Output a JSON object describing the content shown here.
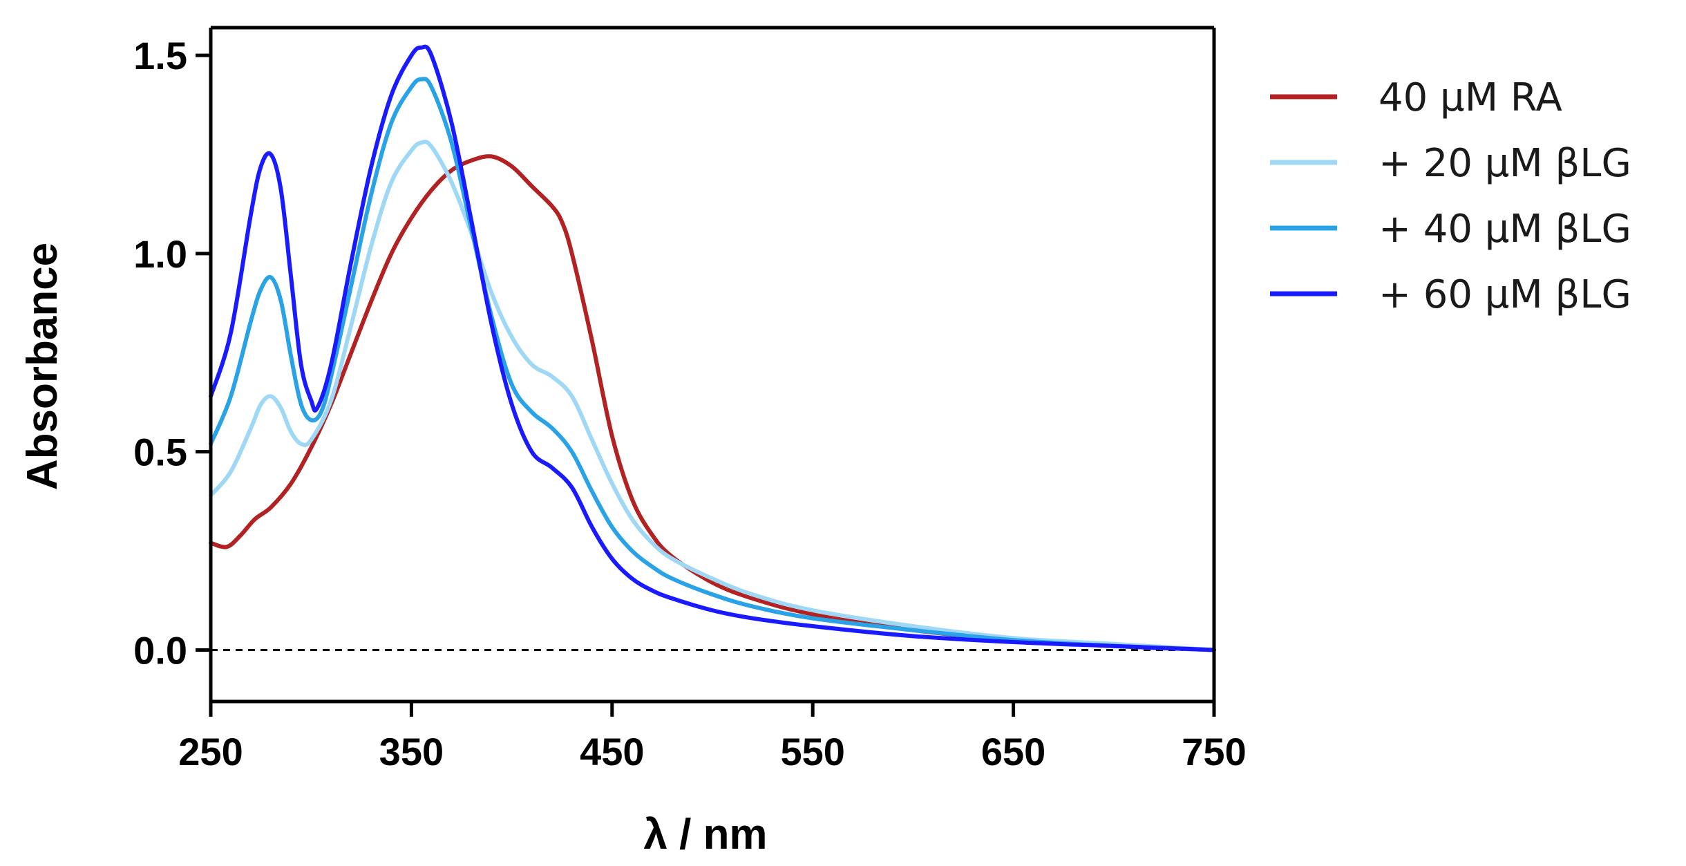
{
  "chart_data": {
    "type": "line",
    "title": "",
    "xlabel": "λ / nm",
    "ylabel": "Absorbance",
    "xlim": [
      250,
      750
    ],
    "ylim": [
      -0.13,
      1.57
    ],
    "xticks": [
      250,
      350,
      450,
      550,
      650,
      750
    ],
    "xtick_labels": [
      "250",
      "350",
      "450",
      "550",
      "650",
      "750"
    ],
    "yticks": [
      0.0,
      0.5,
      1.0,
      1.5
    ],
    "ytick_labels": [
      "0.0",
      "0.5",
      "1.0",
      "1.5"
    ],
    "zero_line": true,
    "legend_position": "right",
    "series": [
      {
        "name": "40 μM RA",
        "color": "#b22222",
        "x": [
          250,
          258,
          265,
          272,
          280,
          290,
          300,
          310,
          320,
          330,
          340,
          350,
          360,
          370,
          380,
          390,
          400,
          410,
          420,
          425,
          430,
          440,
          450,
          460,
          470,
          480,
          500,
          520,
          550,
          600,
          650,
          700,
          750
        ],
        "y": [
          0.27,
          0.26,
          0.29,
          0.33,
          0.36,
          0.42,
          0.51,
          0.62,
          0.75,
          0.88,
          1.0,
          1.09,
          1.16,
          1.21,
          1.235,
          1.245,
          1.22,
          1.17,
          1.12,
          1.08,
          1.0,
          0.78,
          0.54,
          0.38,
          0.29,
          0.235,
          0.17,
          0.13,
          0.09,
          0.05,
          0.025,
          0.01,
          0.0
        ]
      },
      {
        "name": "+ 20 μM βLG",
        "color": "#9fd8f4",
        "x": [
          250,
          260,
          270,
          275,
          280,
          285,
          290,
          295,
          300,
          310,
          320,
          330,
          340,
          350,
          355,
          360,
          370,
          380,
          390,
          400,
          410,
          420,
          430,
          440,
          450,
          460,
          470,
          480,
          500,
          520,
          550,
          600,
          650,
          700,
          750
        ],
        "y": [
          0.39,
          0.45,
          0.56,
          0.62,
          0.64,
          0.61,
          0.55,
          0.52,
          0.53,
          0.63,
          0.82,
          1.02,
          1.18,
          1.26,
          1.28,
          1.27,
          1.18,
          1.05,
          0.9,
          0.79,
          0.72,
          0.69,
          0.64,
          0.53,
          0.42,
          0.33,
          0.27,
          0.23,
          0.18,
          0.14,
          0.1,
          0.06,
          0.03,
          0.015,
          0.0
        ]
      },
      {
        "name": "+ 40 μM βLG",
        "color": "#29a3e6",
        "x": [
          250,
          260,
          270,
          275,
          280,
          285,
          290,
          295,
          300,
          305,
          310,
          320,
          330,
          340,
          350,
          355,
          360,
          370,
          380,
          390,
          400,
          410,
          420,
          430,
          440,
          450,
          460,
          470,
          480,
          500,
          520,
          550,
          600,
          650,
          700,
          750
        ],
        "y": [
          0.52,
          0.64,
          0.83,
          0.91,
          0.94,
          0.88,
          0.74,
          0.62,
          0.58,
          0.6,
          0.69,
          0.92,
          1.15,
          1.33,
          1.42,
          1.44,
          1.42,
          1.28,
          1.06,
          0.84,
          0.67,
          0.6,
          0.56,
          0.5,
          0.4,
          0.31,
          0.25,
          0.21,
          0.18,
          0.14,
          0.11,
          0.08,
          0.05,
          0.025,
          0.01,
          0.0
        ]
      },
      {
        "name": "+ 60 μM βLG",
        "color": "#1a1aff",
        "x": [
          250,
          260,
          270,
          275,
          280,
          285,
          290,
          295,
          300,
          303,
          310,
          320,
          330,
          340,
          350,
          355,
          360,
          370,
          380,
          390,
          400,
          410,
          420,
          430,
          440,
          450,
          460,
          470,
          480,
          500,
          520,
          550,
          600,
          650,
          700,
          750
        ],
        "y": [
          0.64,
          0.8,
          1.1,
          1.22,
          1.25,
          1.16,
          0.94,
          0.72,
          0.63,
          0.61,
          0.72,
          0.98,
          1.22,
          1.4,
          1.5,
          1.52,
          1.5,
          1.33,
          1.08,
          0.82,
          0.62,
          0.5,
          0.46,
          0.41,
          0.31,
          0.23,
          0.18,
          0.15,
          0.13,
          0.1,
          0.08,
          0.06,
          0.035,
          0.02,
          0.01,
          0.0
        ]
      }
    ]
  }
}
